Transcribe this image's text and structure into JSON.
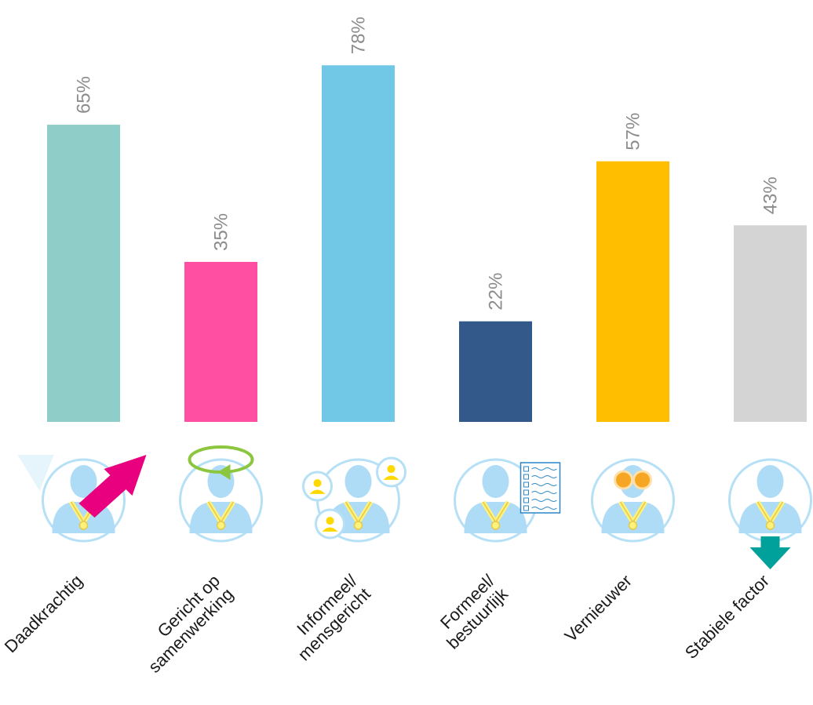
{
  "chart_data": {
    "type": "bar",
    "categories": [
      [
        "Daadkrachtig"
      ],
      [
        "Gericht op",
        "samenwerking"
      ],
      [
        "Informeel/",
        "mensgericht"
      ],
      [
        "Formeel/",
        "bestuurlijk"
      ],
      [
        "Vernieuwer"
      ],
      [
        "Stabiele factor"
      ]
    ],
    "values": [
      65,
      35,
      78,
      22,
      57,
      43
    ],
    "value_labels": [
      "65%",
      "35%",
      "78%",
      "22%",
      "57%",
      "43%"
    ],
    "colors": [
      "#8ecdc8",
      "#ff4fa3",
      "#71c7e6",
      "#32598a",
      "#ffbe00",
      "#d4d4d4"
    ],
    "icons": [
      "leader-arrow-up-icon",
      "leader-cycle-icon",
      "leader-people-icon",
      "leader-checklist-icon",
      "leader-binoculars-icon",
      "leader-arrow-down-icon"
    ],
    "ylim": [
      0,
      100
    ],
    "grid": false,
    "legend": "none"
  }
}
